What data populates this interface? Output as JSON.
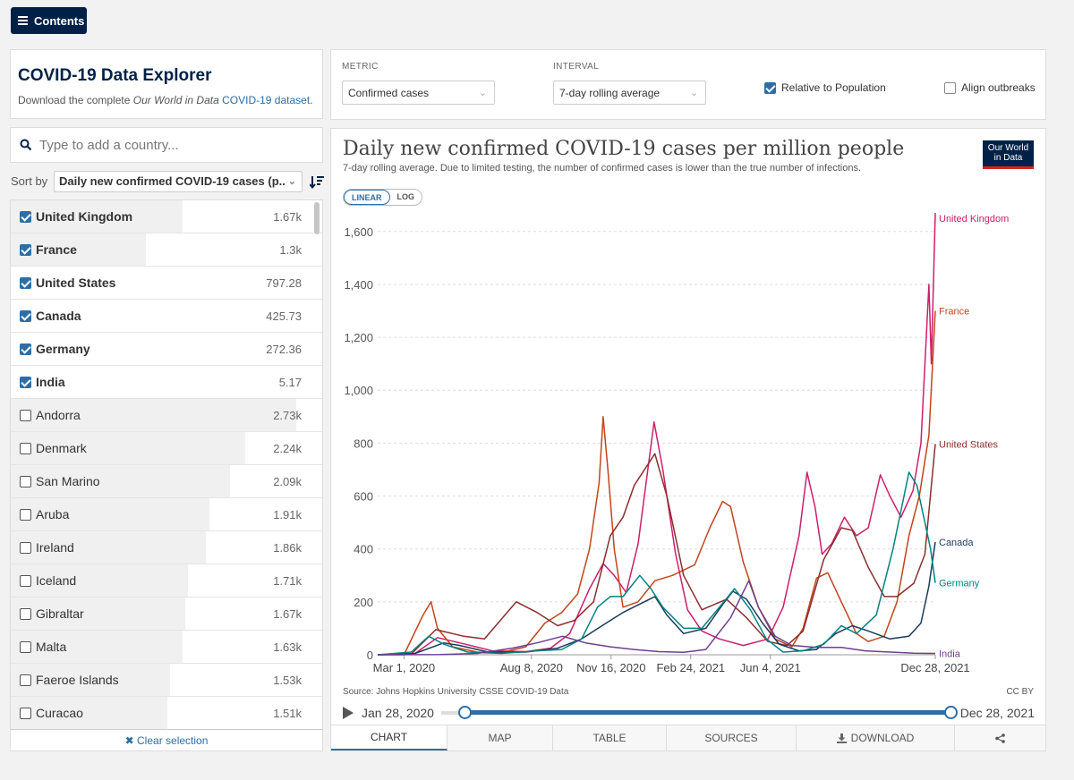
{
  "contents_button": {
    "label": "Contents"
  },
  "explorer": {
    "title": "COVID-19 Data Explorer",
    "download_prefix": "Download the complete ",
    "download_italic": "Our World in Data",
    "download_link": " COVID-19 dataset",
    "download_suffix": "."
  },
  "search": {
    "placeholder": "Type to add a country..."
  },
  "sort": {
    "label": "Sort by",
    "selected": "Daily new confirmed COVID-19 cases (p..."
  },
  "countries": [
    {
      "name": "United Kingdom",
      "value": "1.67k",
      "checked": true,
      "bar": 0.57
    },
    {
      "name": "France",
      "value": "1.3k",
      "checked": true,
      "bar": 0.45
    },
    {
      "name": "United States",
      "value": "797.28",
      "checked": true,
      "bar": 0.0
    },
    {
      "name": "Canada",
      "value": "425.73",
      "checked": true,
      "bar": 0.0
    },
    {
      "name": "Germany",
      "value": "272.36",
      "checked": true,
      "bar": 0.0
    },
    {
      "name": "India",
      "value": "5.17",
      "checked": true,
      "bar": 0.0
    },
    {
      "name": "Andorra",
      "value": "2.73k",
      "checked": false,
      "bar": 0.95
    },
    {
      "name": "Denmark",
      "value": "2.24k",
      "checked": false,
      "bar": 0.78
    },
    {
      "name": "San Marino",
      "value": "2.09k",
      "checked": false,
      "bar": 0.73
    },
    {
      "name": "Aruba",
      "value": "1.91k",
      "checked": false,
      "bar": 0.66
    },
    {
      "name": "Ireland",
      "value": "1.86k",
      "checked": false,
      "bar": 0.65
    },
    {
      "name": "Iceland",
      "value": "1.71k",
      "checked": false,
      "bar": 0.59
    },
    {
      "name": "Gibraltar",
      "value": "1.67k",
      "checked": false,
      "bar": 0.58
    },
    {
      "name": "Malta",
      "value": "1.63k",
      "checked": false,
      "bar": 0.57
    },
    {
      "name": "Faeroe Islands",
      "value": "1.53k",
      "checked": false,
      "bar": 0.53
    },
    {
      "name": "Curacao",
      "value": "1.51k",
      "checked": false,
      "bar": 0.52
    }
  ],
  "clear_selection": "Clear selection",
  "controls": {
    "metric_label": "METRIC",
    "metric_value": "Confirmed cases",
    "interval_label": "INTERVAL",
    "interval_value": "7-day rolling average",
    "relative_label": "Relative to Population",
    "relative_checked": true,
    "align_label": "Align outbreaks",
    "align_checked": false
  },
  "chart_header": {
    "title": "Daily new confirmed COVID-19 cases per million people",
    "subtitle": "7-day rolling average. Due to limited testing, the number of confirmed cases is lower than the true number of infections.",
    "logo_line1": "Our World",
    "logo_line2": "in Data",
    "scale_linear": "LINEAR",
    "scale_log": "LOG",
    "source": "Source: Johns Hopkins University CSSE COVID-19 Data",
    "license": "CC BY"
  },
  "timeline": {
    "start": "Jan 28, 2020",
    "end": "Dec 28, 2021"
  },
  "tabs": [
    "CHART",
    "MAP",
    "TABLE",
    "SOURCES",
    "DOWNLOAD",
    ""
  ],
  "chart_data": {
    "type": "line",
    "title": "Daily new confirmed COVID-19 cases per million people",
    "subtitle": "7-day rolling average. Due to limited testing, the number of confirmed cases is lower than the true number of infections.",
    "x_type": "date",
    "x_range": [
      "2020-01-28",
      "2021-12-28"
    ],
    "x_ticks": [
      {
        "date": "2020-03-01",
        "label": "Mar 1, 2020"
      },
      {
        "date": "2020-08-08",
        "label": "Aug 8, 2020"
      },
      {
        "date": "2020-11-16",
        "label": "Nov 16, 2020"
      },
      {
        "date": "2021-02-24",
        "label": "Feb 24, 2021"
      },
      {
        "date": "2021-06-04",
        "label": "Jun 4, 2021"
      },
      {
        "date": "2021-12-28",
        "label": "Dec 28, 2021"
      }
    ],
    "y_ticks": [
      0,
      200,
      400,
      600,
      800,
      1000,
      1200,
      1400,
      1600
    ],
    "y_tick_labels": [
      "0",
      "200",
      "400",
      "600",
      "800",
      "1,000",
      "1,200",
      "1,400",
      "1,600"
    ],
    "ylim": [
      0,
      1650
    ],
    "grid": "horizontal-dashed",
    "legend": "line-end labels",
    "series": [
      {
        "name": "United Kingdom",
        "color": "#cc1f6b",
        "label_value": 1670,
        "points": [
          [
            "2020-01-28",
            0
          ],
          [
            "2020-03-15",
            5
          ],
          [
            "2020-04-12",
            65
          ],
          [
            "2020-05-10",
            45
          ],
          [
            "2020-06-20",
            15
          ],
          [
            "2020-08-01",
            12
          ],
          [
            "2020-09-01",
            25
          ],
          [
            "2020-09-25",
            80
          ],
          [
            "2020-10-20",
            250
          ],
          [
            "2020-11-06",
            345
          ],
          [
            "2020-11-20",
            300
          ],
          [
            "2020-12-05",
            235
          ],
          [
            "2020-12-20",
            420
          ],
          [
            "2021-01-09",
            880
          ],
          [
            "2021-01-20",
            700
          ],
          [
            "2021-02-05",
            380
          ],
          [
            "2021-02-20,",
            170
          ],
          [
            "2021-03-10",
            90
          ],
          [
            "2021-04-01",
            60
          ],
          [
            "2021-05-01",
            35
          ],
          [
            "2021-06-01",
            60
          ],
          [
            "2021-06-20",
            180
          ],
          [
            "2021-07-10",
            450
          ],
          [
            "2021-07-20",
            690
          ],
          [
            "2021-07-30",
            560
          ],
          [
            "2021-08-08",
            380
          ],
          [
            "2021-08-20",
            420
          ],
          [
            "2021-09-05",
            520
          ],
          [
            "2021-09-20",
            450
          ],
          [
            "2021-10-05",
            480
          ],
          [
            "2021-10-20",
            680
          ],
          [
            "2021-11-01",
            600
          ],
          [
            "2021-11-15",
            520
          ],
          [
            "2021-11-30",
            620
          ],
          [
            "2021-12-10",
            800
          ],
          [
            "2021-12-20",
            1400
          ],
          [
            "2021-12-23",
            1100
          ],
          [
            "2021-12-28",
            1670
          ]
        ]
      },
      {
        "name": "France",
        "color": "#c2451c",
        "label_value": 1300,
        "points": [
          [
            "2020-01-28",
            0
          ],
          [
            "2020-03-01",
            0
          ],
          [
            "2020-03-25",
            150
          ],
          [
            "2020-04-04",
            200
          ],
          [
            "2020-04-12",
            100
          ],
          [
            "2020-05-01",
            30
          ],
          [
            "2020-06-01",
            10
          ],
          [
            "2020-07-01",
            8
          ],
          [
            "2020-08-01",
            30
          ],
          [
            "2020-08-25",
            120
          ],
          [
            "2020-09-15",
            160
          ],
          [
            "2020-10-05",
            230
          ],
          [
            "2020-10-20",
            400
          ],
          [
            "2020-11-01",
            650
          ],
          [
            "2020-11-06",
            900
          ],
          [
            "2020-11-12",
            700
          ],
          [
            "2020-11-20",
            400
          ],
          [
            "2020-12-01",
            180
          ],
          [
            "2020-12-20",
            200
          ],
          [
            "2021-01-10",
            280
          ],
          [
            "2021-02-01",
            300
          ],
          [
            "2021-03-01",
            340
          ],
          [
            "2021-03-20",
            480
          ],
          [
            "2021-04-05",
            580
          ],
          [
            "2021-04-15",
            560
          ],
          [
            "2021-05-01",
            350
          ],
          [
            "2021-05-20",
            180
          ],
          [
            "2021-06-10",
            60
          ],
          [
            "2021-07-01",
            30
          ],
          [
            "2021-07-15",
            100
          ],
          [
            "2021-08-01",
            290
          ],
          [
            "2021-08-15",
            310
          ],
          [
            "2021-09-01",
            200
          ],
          [
            "2021-09-20",
            80
          ],
          [
            "2021-10-05",
            50
          ],
          [
            "2021-10-25",
            70
          ],
          [
            "2021-11-10",
            200
          ],
          [
            "2021-11-25",
            450
          ],
          [
            "2021-12-08",
            600
          ],
          [
            "2021-12-20",
            830
          ],
          [
            "2021-12-28",
            1300
          ]
        ]
      },
      {
        "name": "United States",
        "color": "#8b2e2e",
        "label_value": 797,
        "points": [
          [
            "2020-01-28",
            0
          ],
          [
            "2020-03-10",
            2
          ],
          [
            "2020-04-10",
            95
          ],
          [
            "2020-05-15",
            70
          ],
          [
            "2020-06-10",
            60
          ],
          [
            "2020-07-20",
            200
          ],
          [
            "2020-08-15",
            160
          ],
          [
            "2020-09-10",
            110
          ],
          [
            "2020-10-01",
            130
          ],
          [
            "2020-10-25",
            200
          ],
          [
            "2020-11-15",
            450
          ],
          [
            "2020-12-01",
            520
          ],
          [
            "2020-12-15",
            640
          ],
          [
            "2021-01-10",
            760
          ],
          [
            "2021-01-25",
            600
          ],
          [
            "2021-02-15",
            300
          ],
          [
            "2021-03-10",
            170
          ],
          [
            "2021-04-10",
            210
          ],
          [
            "2021-05-05",
            140
          ],
          [
            "2021-06-01",
            50
          ],
          [
            "2021-06-25",
            35
          ],
          [
            "2021-07-15",
            90
          ],
          [
            "2021-08-10",
            360
          ],
          [
            "2021-09-01",
            480
          ],
          [
            "2021-09-15",
            470
          ],
          [
            "2021-10-05",
            330
          ],
          [
            "2021-10-25",
            220
          ],
          [
            "2021-11-10",
            220
          ],
          [
            "2021-12-01",
            270
          ],
          [
            "2021-12-15",
            380
          ],
          [
            "2021-12-28",
            797
          ]
        ]
      },
      {
        "name": "Canada",
        "color": "#1b3a5c",
        "label_value": 426,
        "points": [
          [
            "2020-01-28",
            0
          ],
          [
            "2020-03-15",
            5
          ],
          [
            "2020-04-20",
            45
          ],
          [
            "2020-05-10",
            35
          ],
          [
            "2020-06-15",
            10
          ],
          [
            "2020-08-01",
            10
          ],
          [
            "2020-09-10",
            25
          ],
          [
            "2020-10-10",
            60
          ],
          [
            "2020-11-10",
            120
          ],
          [
            "2020-12-01",
            160
          ],
          [
            "2021-01-10",
            220
          ],
          [
            "2021-01-25",
            150
          ],
          [
            "2021-02-15",
            80
          ],
          [
            "2021-03-15",
            100
          ],
          [
            "2021-04-05",
            190
          ],
          [
            "2021-04-18",
            240
          ],
          [
            "2021-05-05",
            210
          ],
          [
            "2021-05-25",
            120
          ],
          [
            "2021-06-15",
            40
          ],
          [
            "2021-07-10",
            15
          ],
          [
            "2021-08-01",
            20
          ],
          [
            "2021-08-25",
            80
          ],
          [
            "2021-09-15",
            110
          ],
          [
            "2021-10-05",
            90
          ],
          [
            "2021-11-01",
            60
          ],
          [
            "2021-11-25",
            70
          ],
          [
            "2021-12-10",
            120
          ],
          [
            "2021-12-20",
            260
          ],
          [
            "2021-12-28",
            426
          ]
        ]
      },
      {
        "name": "Germany",
        "color": "#00847e",
        "label_value": 272,
        "points": [
          [
            "2020-01-28",
            0
          ],
          [
            "2020-03-10",
            10
          ],
          [
            "2020-04-01",
            70
          ],
          [
            "2020-04-20",
            40
          ],
          [
            "2020-05-20",
            10
          ],
          [
            "2020-07-01",
            5
          ],
          [
            "2020-08-15",
            15
          ],
          [
            "2020-09-15",
            20
          ],
          [
            "2020-10-10",
            60
          ],
          [
            "2020-10-30",
            180
          ],
          [
            "2020-11-15",
            220
          ],
          [
            "2020-12-01",
            220
          ],
          [
            "2020-12-22",
            300
          ],
          [
            "2021-01-05",
            250
          ],
          [
            "2021-01-20",
            180
          ],
          [
            "2021-02-15",
            100
          ],
          [
            "2021-03-10",
            100
          ],
          [
            "2021-04-01",
            180
          ],
          [
            "2021-04-20",
            250
          ],
          [
            "2021-05-10",
            170
          ],
          [
            "2021-05-30",
            60
          ],
          [
            "2021-06-20",
            10
          ],
          [
            "2021-07-15",
            15
          ],
          [
            "2021-08-10",
            40
          ],
          [
            "2021-09-01",
            110
          ],
          [
            "2021-09-20",
            80
          ],
          [
            "2021-10-15",
            150
          ],
          [
            "2021-11-05",
            400
          ],
          [
            "2021-11-25",
            690
          ],
          [
            "2021-12-05",
            640
          ],
          [
            "2021-12-15",
            500
          ],
          [
            "2021-12-22",
            400
          ],
          [
            "2021-12-28",
            272
          ]
        ]
      },
      {
        "name": "India",
        "color": "#6d3e91",
        "label_value": 5,
        "points": [
          [
            "2020-01-28",
            0
          ],
          [
            "2020-04-15",
            1
          ],
          [
            "2020-06-01",
            5
          ],
          [
            "2020-07-15",
            25
          ],
          [
            "2020-08-15",
            45
          ],
          [
            "2020-09-16",
            70
          ],
          [
            "2020-10-15",
            45
          ],
          [
            "2020-11-15",
            30
          ],
          [
            "2020-12-15",
            20
          ],
          [
            "2021-01-15",
            12
          ],
          [
            "2021-02-15",
            9
          ],
          [
            "2021-03-15",
            20
          ],
          [
            "2021-04-15",
            140
          ],
          [
            "2021-05-08",
            280
          ],
          [
            "2021-05-20",
            180
          ],
          [
            "2021-06-10",
            70
          ],
          [
            "2021-07-01",
            35
          ],
          [
            "2021-08-01",
            28
          ],
          [
            "2021-09-01",
            28
          ],
          [
            "2021-10-01",
            15
          ],
          [
            "2021-11-01",
            10
          ],
          [
            "2021-12-01",
            6
          ],
          [
            "2021-12-28",
            5
          ]
        ]
      }
    ]
  }
}
